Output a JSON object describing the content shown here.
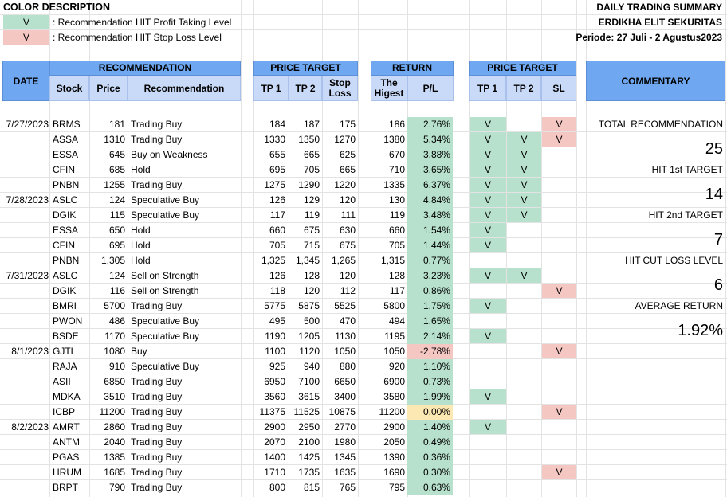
{
  "legend": {
    "title": "COLOR DESCRIPTION",
    "items": [
      {
        "mark": "V",
        "text": ": Recommendation HIT Profit Taking Level",
        "color": "#b7e1cd"
      },
      {
        "mark": "V",
        "text": ": Recommendation HIT Stop Loss Level",
        "color": "#f4c7c3"
      }
    ]
  },
  "header": {
    "title": "DAILY TRADING SUMMARY",
    "company": "ERDIKHA ELIT SEKURITAS",
    "period": "Periode: 27 Juli - 2 Agustus2023"
  },
  "columns": {
    "date": "DATE",
    "recommendation": "RECOMMENDATION",
    "stock": "Stock",
    "price": "Price",
    "rec": "Recommendation",
    "price_target": "PRICE TARGET",
    "tp1": "TP 1",
    "tp2": "TP 2",
    "stop_loss": "Stop Loss",
    "return": "RETURN",
    "highest": "The Higest",
    "pl": "P/L",
    "price_target2": "PRICE TARGET",
    "tp1b": "TP 1",
    "tp2b": "TP 2",
    "sl": "SL",
    "commentary": "COMMENTARY"
  },
  "rows": [
    {
      "date": "7/27/2023",
      "stock": "BRMS",
      "price": "181",
      "rec": "Trading Buy",
      "tp1": "184",
      "tp2": "187",
      "sl": "175",
      "high": "186",
      "pl": "2.76%",
      "plc": "green",
      "h1": "V",
      "h2": "",
      "hs": "V"
    },
    {
      "date": "",
      "stock": "ASSA",
      "price": "1310",
      "rec": "Trading Buy",
      "tp1": "1330",
      "tp2": "1350",
      "sl": "1270",
      "high": "1380",
      "pl": "5.34%",
      "plc": "green",
      "h1": "V",
      "h2": "V",
      "hs": "V"
    },
    {
      "date": "",
      "stock": "ESSA",
      "price": "645",
      "rec": "Buy on Weakness",
      "tp1": "655",
      "tp2": "665",
      "sl": "625",
      "high": "670",
      "pl": "3.88%",
      "plc": "green",
      "h1": "V",
      "h2": "V",
      "hs": ""
    },
    {
      "date": "",
      "stock": "CFIN",
      "price": "685",
      "rec": "Hold",
      "tp1": "695",
      "tp2": "705",
      "sl": "665",
      "high": "710",
      "pl": "3.65%",
      "plc": "green",
      "h1": "V",
      "h2": "V",
      "hs": ""
    },
    {
      "date": "",
      "stock": "PNBN",
      "price": "1255",
      "rec": "Trading Buy",
      "tp1": "1275",
      "tp2": "1290",
      "sl": "1220",
      "high": "1335",
      "pl": "6.37%",
      "plc": "green",
      "h1": "V",
      "h2": "V",
      "hs": ""
    },
    {
      "date": "7/28/2023",
      "stock": "ASLC",
      "price": "124",
      "rec": "Speculative Buy",
      "tp1": "126",
      "tp2": "129",
      "sl": "120",
      "high": "130",
      "pl": "4.84%",
      "plc": "green",
      "h1": "V",
      "h2": "V",
      "hs": ""
    },
    {
      "date": "",
      "stock": "DGIK",
      "price": "115",
      "rec": "Speculative Buy",
      "tp1": "117",
      "tp2": "119",
      "sl": "111",
      "high": "119",
      "pl": "3.48%",
      "plc": "green",
      "h1": "V",
      "h2": "V",
      "hs": ""
    },
    {
      "date": "",
      "stock": "ESSA",
      "price": "650",
      "rec": "Hold",
      "tp1": "660",
      "tp2": "675",
      "sl": "630",
      "high": "660",
      "pl": "1.54%",
      "plc": "green",
      "h1": "V",
      "h2": "",
      "hs": ""
    },
    {
      "date": "",
      "stock": "CFIN",
      "price": "695",
      "rec": "Hold",
      "tp1": "705",
      "tp2": "715",
      "sl": "675",
      "high": "705",
      "pl": "1.44%",
      "plc": "green",
      "h1": "V",
      "h2": "",
      "hs": ""
    },
    {
      "date": "",
      "stock": "PNBN",
      "price": "1,305",
      "rec": "Hold",
      "tp1": "1,325",
      "tp2": "1,345",
      "sl": "1,265",
      "high": "1,315",
      "pl": "0.77%",
      "plc": "green",
      "h1": "",
      "h2": "",
      "hs": ""
    },
    {
      "date": "7/31/2023",
      "stock": "ASLC",
      "price": "124",
      "rec": "Sell on Strength",
      "tp1": "126",
      "tp2": "128",
      "sl": "120",
      "high": "128",
      "pl": "3.23%",
      "plc": "green",
      "h1": "V",
      "h2": "V",
      "hs": ""
    },
    {
      "date": "",
      "stock": "DGIK",
      "price": "116",
      "rec": "Sell on Strength",
      "tp1": "118",
      "tp2": "120",
      "sl": "112",
      "high": "117",
      "pl": "0.86%",
      "plc": "green",
      "h1": "",
      "h2": "",
      "hs": "V"
    },
    {
      "date": "",
      "stock": "BMRI",
      "price": "5700",
      "rec": "Trading Buy",
      "tp1": "5775",
      "tp2": "5875",
      "sl": "5525",
      "high": "5800",
      "pl": "1.75%",
      "plc": "green",
      "h1": "V",
      "h2": "",
      "hs": ""
    },
    {
      "date": "",
      "stock": "PWON",
      "price": "486",
      "rec": "Speculative Buy",
      "tp1": "495",
      "tp2": "500",
      "sl": "470",
      "high": "494",
      "pl": "1.65%",
      "plc": "green",
      "h1": "",
      "h2": "",
      "hs": ""
    },
    {
      "date": "",
      "stock": "BSDE",
      "price": "1170",
      "rec": "Speculative Buy",
      "tp1": "1190",
      "tp2": "1205",
      "sl": "1130",
      "high": "1195",
      "pl": "2.14%",
      "plc": "green",
      "h1": "V",
      "h2": "",
      "hs": ""
    },
    {
      "date": "8/1/2023",
      "stock": "GJTL",
      "price": "1080",
      "rec": "Buy",
      "tp1": "1100",
      "tp2": "1120",
      "sl": "1050",
      "high": "1050",
      "pl": "-2.78%",
      "plc": "red",
      "h1": "",
      "h2": "",
      "hs": "V"
    },
    {
      "date": "",
      "stock": "RAJA",
      "price": "910",
      "rec": "Speculative Buy",
      "tp1": "925",
      "tp2": "940",
      "sl": "880",
      "high": "920",
      "pl": "1.10%",
      "plc": "green",
      "h1": "",
      "h2": "",
      "hs": ""
    },
    {
      "date": "",
      "stock": "ASII",
      "price": "6850",
      "rec": "Trading Buy",
      "tp1": "6950",
      "tp2": "7100",
      "sl": "6650",
      "high": "6900",
      "pl": "0.73%",
      "plc": "green",
      "h1": "",
      "h2": "",
      "hs": ""
    },
    {
      "date": "",
      "stock": "MDKA",
      "price": "3510",
      "rec": "Trading Buy",
      "tp1": "3560",
      "tp2": "3615",
      "sl": "3400",
      "high": "3580",
      "pl": "1.99%",
      "plc": "green",
      "h1": "V",
      "h2": "",
      "hs": ""
    },
    {
      "date": "",
      "stock": "ICBP",
      "price": "11200",
      "rec": "Trading Buy",
      "tp1": "11375",
      "tp2": "11525",
      "sl": "10875",
      "high": "11200",
      "pl": "0.00%",
      "plc": "yellow",
      "h1": "",
      "h2": "",
      "hs": "V"
    },
    {
      "date": "8/2/2023",
      "stock": "AMRT",
      "price": "2860",
      "rec": "Trading Buy",
      "tp1": "2900",
      "tp2": "2950",
      "sl": "2770",
      "high": "2900",
      "pl": "1.40%",
      "plc": "green",
      "h1": "V",
      "h2": "",
      "hs": ""
    },
    {
      "date": "",
      "stock": "ANTM",
      "price": "2040",
      "rec": "Trading Buy",
      "tp1": "2070",
      "tp2": "2100",
      "sl": "1980",
      "high": "2050",
      "pl": "0.49%",
      "plc": "green",
      "h1": "",
      "h2": "",
      "hs": ""
    },
    {
      "date": "",
      "stock": "PGAS",
      "price": "1385",
      "rec": "Trading Buy",
      "tp1": "1400",
      "tp2": "1425",
      "sl": "1345",
      "high": "1390",
      "pl": "0.36%",
      "plc": "green",
      "h1": "",
      "h2": "",
      "hs": ""
    },
    {
      "date": "",
      "stock": "HRUM",
      "price": "1685",
      "rec": "Trading Buy",
      "tp1": "1710",
      "tp2": "1735",
      "sl": "1635",
      "high": "1690",
      "pl": "0.30%",
      "plc": "green",
      "h1": "",
      "h2": "",
      "hs": "V"
    },
    {
      "date": "",
      "stock": "BRPT",
      "price": "790",
      "rec": "Trading Buy",
      "tp1": "800",
      "tp2": "815",
      "sl": "765",
      "high": "795",
      "pl": "0.63%",
      "plc": "green",
      "h1": "",
      "h2": "",
      "hs": ""
    }
  ],
  "commentary": {
    "total_label": "TOTAL RECOMMENDATION",
    "total_value": "25",
    "hit1_label": "HIT 1st TARGET",
    "hit1_value": "14",
    "hit2_label": "HIT 2nd TARGET",
    "hit2_value": "7",
    "cut_label": "HIT CUT LOSS LEVEL",
    "cut_value": "6",
    "avg_label": "AVERAGE RETURN",
    "avg_value": "1.92%"
  }
}
